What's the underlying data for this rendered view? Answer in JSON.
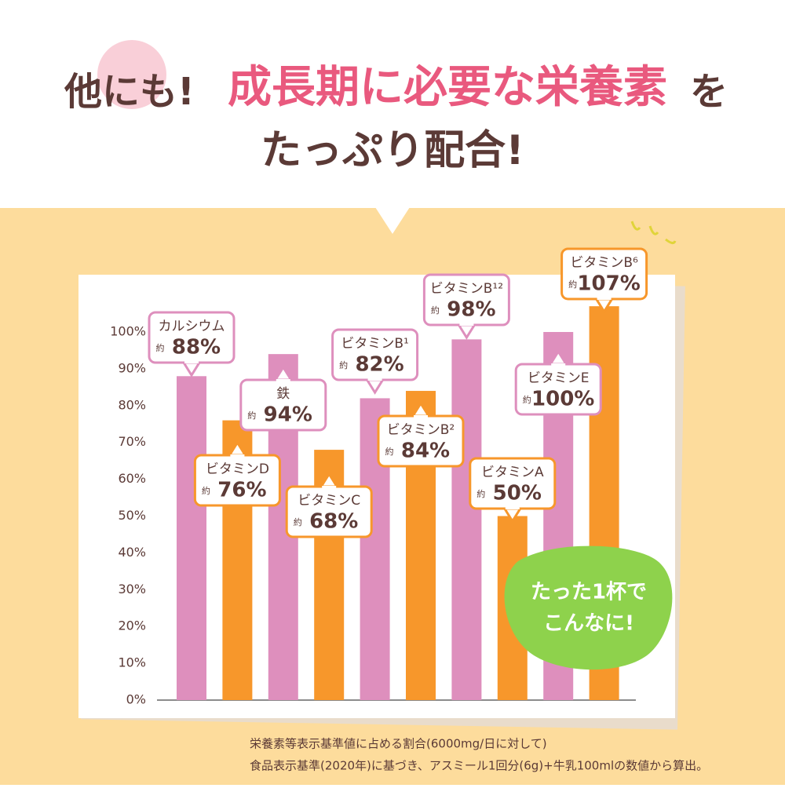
{
  "chart_data": {
    "type": "bar",
    "title_lead": "他にも!",
    "title": "成長期に必要な栄養素",
    "title_tail": "を",
    "subtitle": "たっぷり配合!",
    "categories": [
      "カルシウム",
      "ビタミンD",
      "鉄",
      "ビタミンC",
      "ビタミンB¹",
      "ビタミンB²",
      "ビタミンB¹²",
      "ビタミンA",
      "ビタミンE",
      "ビタミンB⁶"
    ],
    "values": [
      88,
      76,
      94,
      68,
      82,
      84,
      98,
      50,
      100,
      107
    ],
    "value_labels": [
      "88%",
      "76%",
      "94%",
      "68%",
      "82%",
      "84%",
      "98%",
      "50%",
      "100%",
      "107%"
    ],
    "approx_label": "約",
    "colors": [
      "#de8fbd",
      "#f7972b",
      "#de8fbd",
      "#f7972b",
      "#de8fbd",
      "#f7972b",
      "#de8fbd",
      "#f7972b",
      "#de8fbd",
      "#f7972b"
    ],
    "ylim": [
      0,
      100
    ],
    "yticks": [
      {
        "value": 0,
        "label": "0%"
      },
      {
        "value": 10,
        "label": "10%"
      },
      {
        "value": 20,
        "label": "20%"
      },
      {
        "value": 30,
        "label": "30%"
      },
      {
        "value": 40,
        "label": "40%"
      },
      {
        "value": 50,
        "label": "50%"
      },
      {
        "value": 60,
        "label": "60%"
      },
      {
        "value": 70,
        "label": "70%"
      },
      {
        "value": 80,
        "label": "80%"
      },
      {
        "value": 90,
        "label": "90%"
      },
      {
        "value": 100,
        "label": "100%"
      }
    ],
    "annotation": [
      "たった1杯で",
      "こんなに!"
    ],
    "footnotes": [
      "栄養素等表示基準値に占める割合(6000mg/日に対して)",
      "食品表示基準(2020年)に基づき、アスミール1回分(6g)+牛乳100mlの数値から算出。"
    ]
  }
}
